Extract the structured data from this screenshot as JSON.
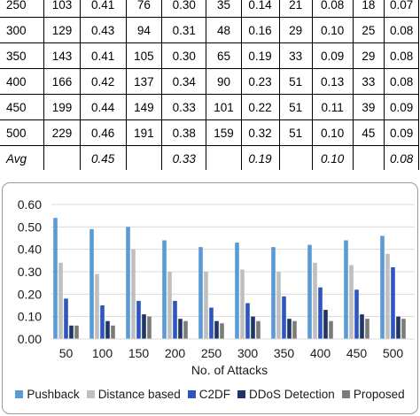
{
  "table": {
    "rows": [
      {
        "label": "250",
        "cells": [
          "103",
          "0.41",
          "76",
          "0.30",
          "35",
          "0.14",
          "21",
          "0.08",
          "18",
          "0.07"
        ]
      },
      {
        "label": "300",
        "cells": [
          "129",
          "0.43",
          "94",
          "0.31",
          "48",
          "0.16",
          "29",
          "0.10",
          "25",
          "0.08"
        ]
      },
      {
        "label": "350",
        "cells": [
          "143",
          "0.41",
          "105",
          "0.30",
          "65",
          "0.19",
          "33",
          "0.09",
          "29",
          "0.08"
        ]
      },
      {
        "label": "400",
        "cells": [
          "166",
          "0.42",
          "137",
          "0.34",
          "90",
          "0.23",
          "51",
          "0.13",
          "33",
          "0.08"
        ]
      },
      {
        "label": "450",
        "cells": [
          "199",
          "0.44",
          "149",
          "0.33",
          "101",
          "0.22",
          "51",
          "0.11",
          "39",
          "0.09"
        ]
      },
      {
        "label": "500",
        "cells": [
          "229",
          "0.46",
          "191",
          "0.38",
          "159",
          "0.32",
          "51",
          "0.10",
          "45",
          "0.09"
        ]
      }
    ],
    "avg": {
      "label": "Avg",
      "cells": [
        "",
        "0.45",
        "",
        "0.33",
        "",
        "0.19",
        "",
        "0.10",
        "",
        "0.08"
      ]
    }
  },
  "chart_data": {
    "type": "bar",
    "title": "",
    "xlabel": "No. of Attacks",
    "ylabel": "",
    "categories": [
      "50",
      "100",
      "150",
      "200",
      "250",
      "300",
      "350",
      "400",
      "450",
      "500"
    ],
    "ylim": [
      0,
      0.6
    ],
    "yticks": [
      "0.00",
      "0.10",
      "0.20",
      "0.30",
      "0.40",
      "0.50",
      "0.60"
    ],
    "grid": true,
    "legend_position": "bottom",
    "series": [
      {
        "name": "Pushback",
        "color": "#5b9bd5",
        "values": [
          0.54,
          0.49,
          0.5,
          0.44,
          0.41,
          0.43,
          0.41,
          0.42,
          0.44,
          0.46
        ]
      },
      {
        "name": "Distance based",
        "color": "#bfbfbf",
        "values": [
          0.34,
          0.29,
          0.4,
          0.3,
          0.3,
          0.31,
          0.3,
          0.34,
          0.33,
          0.38
        ]
      },
      {
        "name": "C2DF",
        "color": "#2f55c0",
        "values": [
          0.18,
          0.15,
          0.17,
          0.17,
          0.14,
          0.16,
          0.19,
          0.23,
          0.22,
          0.32
        ]
      },
      {
        "name": "DDoS Detection",
        "color": "#1f3566",
        "values": [
          0.06,
          0.08,
          0.11,
          0.09,
          0.08,
          0.1,
          0.09,
          0.13,
          0.11,
          0.1
        ]
      },
      {
        "name": "Proposed",
        "color": "#7b7b7b",
        "values": [
          0.06,
          0.06,
          0.1,
          0.08,
          0.07,
          0.08,
          0.08,
          0.08,
          0.09,
          0.09
        ]
      }
    ]
  }
}
